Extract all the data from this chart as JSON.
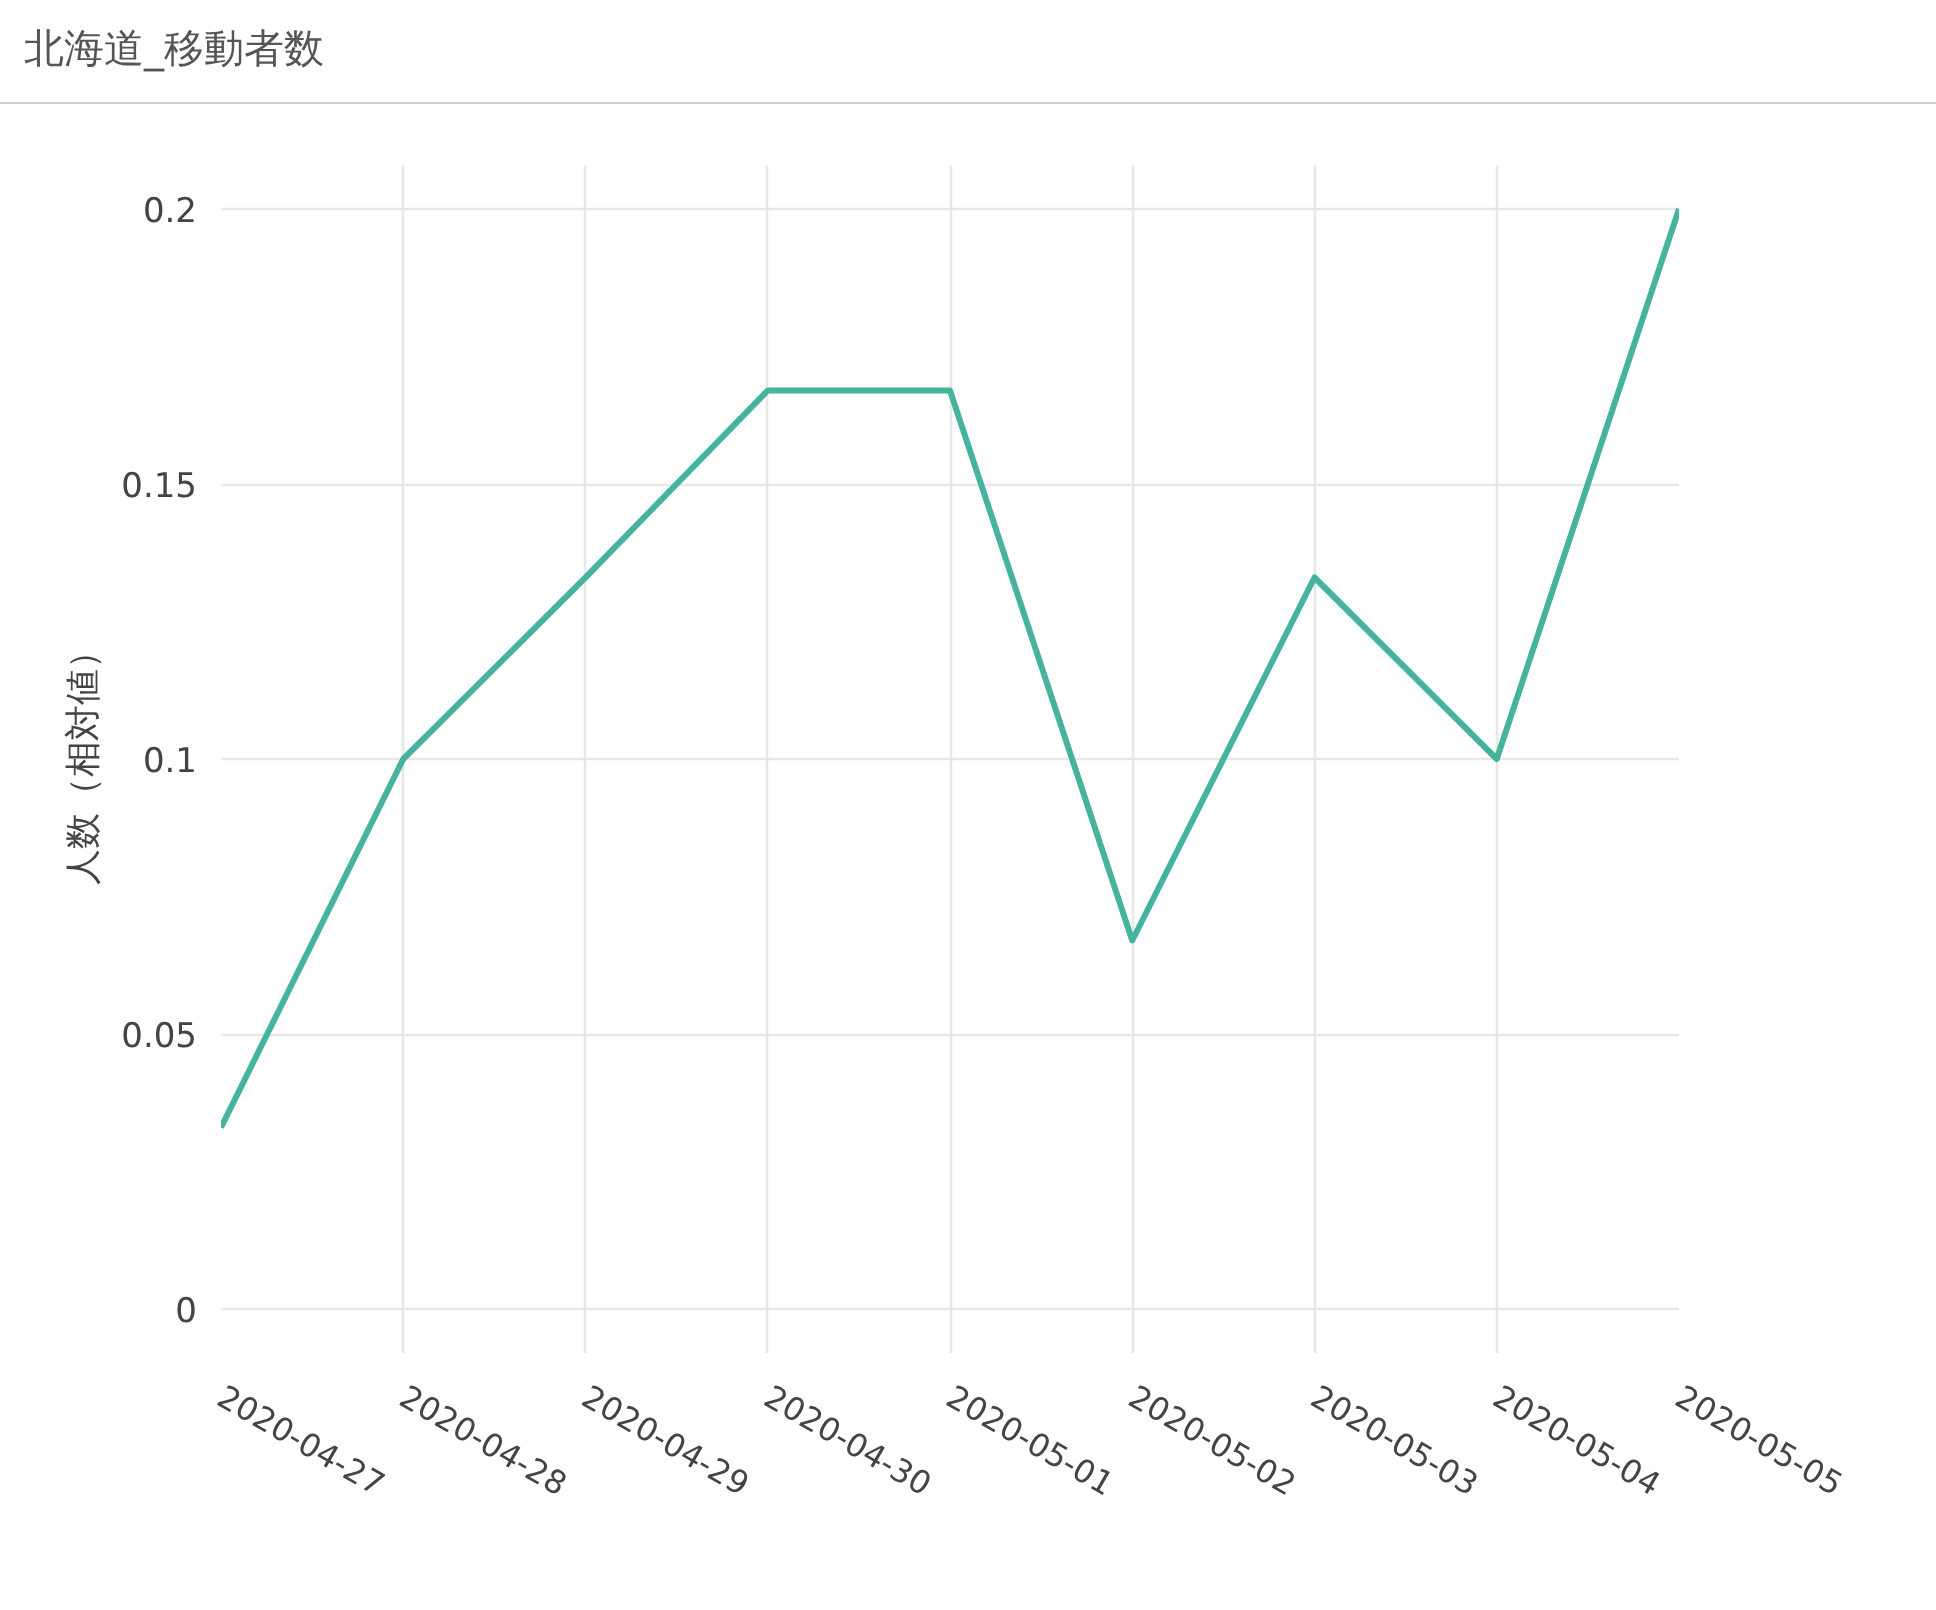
{
  "chart_data": {
    "type": "line",
    "title": "北海道_移動者数",
    "ylabel": "人数（相対値）",
    "x": [
      "2020-04-27",
      "2020-04-28",
      "2020-04-29",
      "2020-04-30",
      "2020-05-01",
      "2020-05-02",
      "2020-05-03",
      "2020-05-04",
      "2020-05-05"
    ],
    "series": [
      {
        "color": "#45b39d",
        "values": [
          0.033,
          0.1,
          0.133,
          0.167,
          0.167,
          0.067,
          0.133,
          0.1,
          0.2
        ]
      }
    ],
    "xlim": [
      "2020-04-27",
      "2020-05-05"
    ],
    "ylim": [
      -0.008,
      0.208
    ],
    "xticks": [
      "2020-04-27",
      "2020-04-28",
      "2020-04-29",
      "2020-04-30",
      "2020-05-01",
      "2020-05-02",
      "2020-05-03",
      "2020-05-04",
      "2020-05-05"
    ],
    "yticks": [
      0,
      0.05,
      0.1,
      0.15,
      0.2
    ],
    "grid": true,
    "line_style": "solid"
  }
}
